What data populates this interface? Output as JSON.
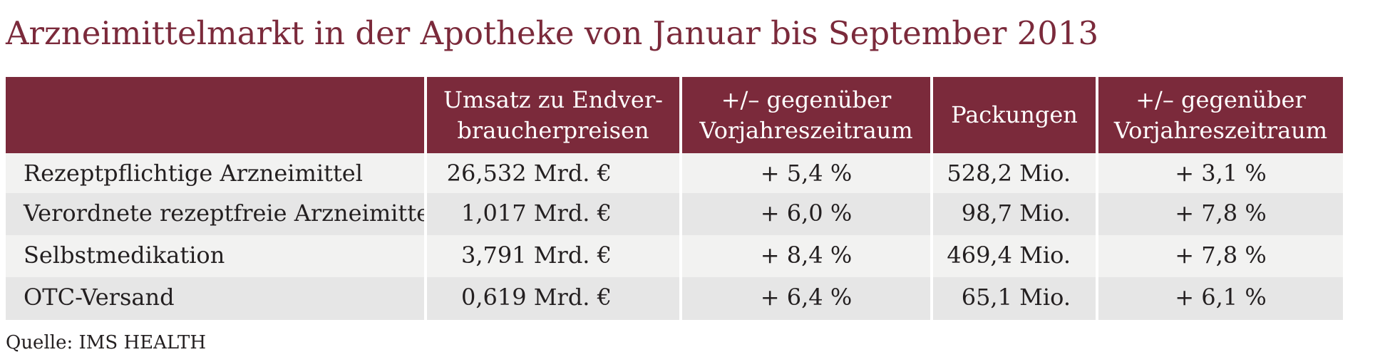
{
  "title": "Arzneimittelmarkt in der Apotheke von Januar bis September 2013",
  "source": "Quelle: IMS HEALTH",
  "colors": {
    "header_background": "#7b2a3b",
    "row_light": "#f2f2f1",
    "row_dark": "#e6e6e6"
  },
  "chart_data": {
    "type": "table",
    "title": "Arzneimittelmarkt in der Apotheke von Januar bis September 2013",
    "columns": [
      "",
      "Umsatz zu Endverbraucherpreisen",
      "+/– gegenüber Vorjahreszeitraum",
      "Packungen",
      "+/– gegenüber Vorjahreszeitraum"
    ],
    "header_lines": [
      [],
      [
        "Umsatz zu Endver-",
        "braucherpreisen"
      ],
      [
        "+/– gegenüber",
        "Vorjahreszeitraum"
      ],
      [
        "Packungen"
      ],
      [
        "+/– gegenüber",
        "Vorjahreszeitraum"
      ]
    ],
    "rows": [
      {
        "label": "Rezeptpflichtige Arzneimittel",
        "umsatz": "26,532 Mrd. €",
        "umsatz_change": "+ 5,4 %",
        "packungen": "528,2 Mio.",
        "packungen_change": "+ 3,1 %"
      },
      {
        "label": "Verordnete rezeptfreie Arzneimittel",
        "umsatz": "1,017 Mrd. €",
        "umsatz_change": "+ 6,0 %",
        "packungen": "98,7 Mio.",
        "packungen_change": "+ 7,8 %"
      },
      {
        "label": "Selbstmedikation",
        "umsatz": "3,791 Mrd. €",
        "umsatz_change": "+ 8,4 %",
        "packungen": "469,4 Mio.",
        "packungen_change": "+ 7,8 %"
      },
      {
        "label": "OTC-Versand",
        "umsatz": "0,619 Mrd. €",
        "umsatz_change": "+ 6,4 %",
        "packungen": "65,1 Mio.",
        "packungen_change": "+ 6,1 %"
      }
    ]
  }
}
